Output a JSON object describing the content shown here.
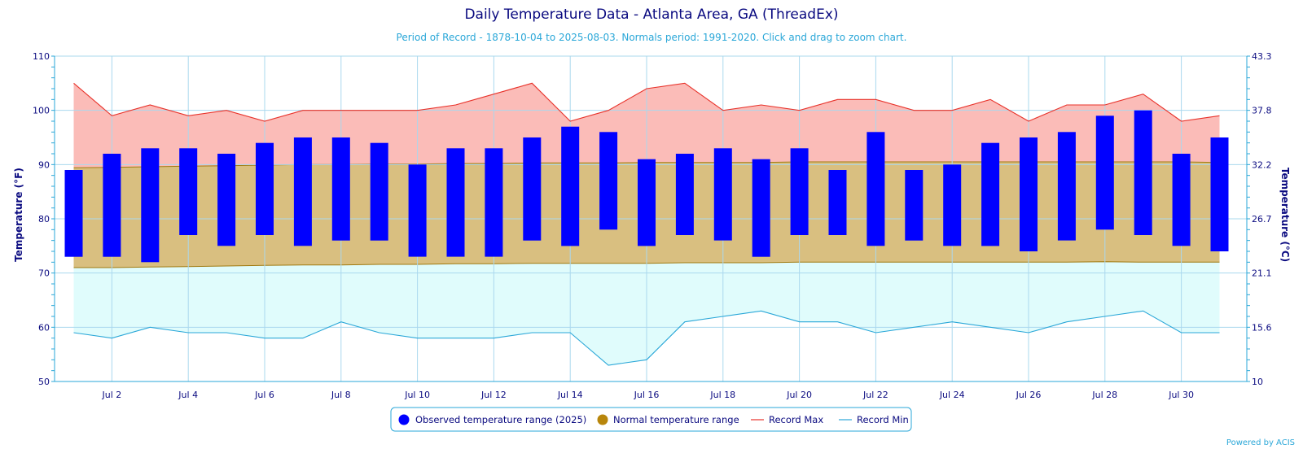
{
  "chart_data": {
    "type": "bar",
    "title": "Daily Temperature Data - Atlanta Area, GA (ThreadEx)",
    "subtitle": "Period of Record - 1878-10-04 to 2025-08-03. Normals period: 1991-2020. Click and drag to zoom chart.",
    "ylabel": "Temperature (°F)",
    "y2label": "Temperature (°C)",
    "ylim": [
      50,
      110
    ],
    "y_ticks": [
      "50",
      "60",
      "70",
      "80",
      "90",
      "100",
      "110"
    ],
    "y2_ticks": [
      "10",
      "15.6",
      "21.1",
      "26.7",
      "32.2",
      "37.8",
      "43.3"
    ],
    "x_days": [
      1,
      2,
      3,
      4,
      5,
      6,
      7,
      8,
      9,
      10,
      11,
      12,
      13,
      14,
      15,
      16,
      17,
      18,
      19,
      20,
      21,
      22,
      23,
      24,
      25,
      26,
      27,
      28,
      29,
      30,
      31
    ],
    "x_ticks": [
      "Jul 2",
      "Jul 4",
      "Jul 6",
      "Jul 8",
      "Jul 10",
      "Jul 12",
      "Jul 14",
      "Jul 16",
      "Jul 18",
      "Jul 20",
      "Jul 22",
      "Jul 24",
      "Jul 26",
      "Jul 28",
      "Jul 30"
    ],
    "grid": true,
    "legend_position": "bottom-center",
    "series": [
      {
        "name": "Observed temperature range (2025)",
        "color": "#0000ff",
        "low": [
          73,
          73,
          72,
          77,
          75,
          77,
          75,
          76,
          76,
          73,
          73,
          73,
          76,
          75,
          78,
          75,
          77,
          76,
          73,
          77,
          77,
          75,
          76,
          75,
          75,
          74,
          76,
          78,
          77,
          75,
          74
        ],
        "high": [
          89,
          92,
          93,
          93,
          92,
          94,
          95,
          95,
          94,
          90,
          93,
          93,
          95,
          97,
          96,
          91,
          92,
          93,
          91,
          93,
          89,
          96,
          89,
          90,
          94,
          95,
          96,
          99,
          100,
          92,
          95
        ]
      },
      {
        "name": "Normal temperature range",
        "color": "#b8860b",
        "low": [
          71,
          71,
          71.1,
          71.2,
          71.3,
          71.4,
          71.5,
          71.5,
          71.6,
          71.6,
          71.7,
          71.7,
          71.8,
          71.8,
          71.8,
          71.8,
          71.9,
          71.9,
          71.9,
          72,
          72,
          72,
          72,
          72,
          72,
          72,
          72,
          72.1,
          72,
          72,
          72
        ],
        "high": [
          89.4,
          89.5,
          89.6,
          89.7,
          89.8,
          89.9,
          90,
          90,
          90.1,
          90.1,
          90.2,
          90.2,
          90.3,
          90.3,
          90.3,
          90.4,
          90.4,
          90.4,
          90.4,
          90.5,
          90.5,
          90.5,
          90.5,
          90.5,
          90.5,
          90.5,
          90.5,
          90.5,
          90.5,
          90.5,
          90.4
        ]
      },
      {
        "name": "Record Max",
        "color": "#e8322a",
        "values": [
          105,
          99,
          101,
          99,
          100,
          98,
          100,
          100,
          100,
          100,
          101,
          103,
          105,
          98,
          100,
          104,
          105,
          100,
          101,
          100,
          102,
          102,
          100,
          100,
          102,
          98,
          101,
          101,
          103,
          98,
          99
        ]
      },
      {
        "name": "Record Min",
        "color": "#2aa7d8",
        "values": [
          59,
          58,
          60,
          59,
          59,
          58,
          58,
          61,
          59,
          58,
          58,
          58,
          59,
          59,
          53,
          54,
          61,
          62,
          63,
          61,
          61,
          59,
          60,
          61,
          60,
          59,
          61,
          62,
          63,
          59,
          59
        ]
      }
    ],
    "credit": "Powered by ACIS"
  }
}
